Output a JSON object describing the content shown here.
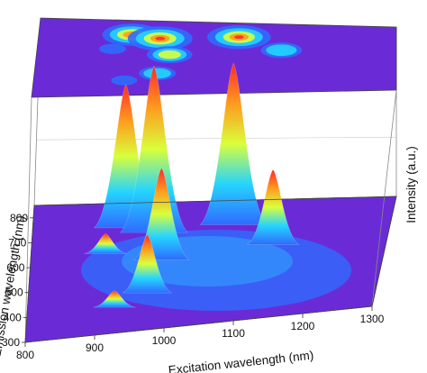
{
  "chart_data": {
    "type": "surface",
    "xlabel": "Excitation wavelength (nm)",
    "ylabel": "Emission wavelength (nm)",
    "zlabel": "Intensity (a.u.)",
    "x_ticks": [
      "800",
      "900",
      "1000",
      "1100",
      "1200",
      "1300"
    ],
    "y_ticks": [
      "300",
      "400",
      "500",
      "600",
      "700",
      "800"
    ],
    "xlim": [
      800,
      1300
    ],
    "ylim": [
      300,
      850
    ],
    "projection": "top-plane-contour",
    "colormap": [
      "#6a2bd6",
      "#2f6bff",
      "#25d4ff",
      "#d9ff3b",
      "#ff9a1e",
      "#ff2a2a"
    ],
    "peaks": [
      {
        "x": 930,
        "y": 745,
        "z": 0.86
      },
      {
        "x": 970,
        "y": 720,
        "z": 1.0
      },
      {
        "x": 985,
        "y": 600,
        "z": 0.55
      },
      {
        "x": 1080,
        "y": 740,
        "z": 0.97
      },
      {
        "x": 1140,
        "y": 640,
        "z": 0.45
      },
      {
        "x": 970,
        "y": 460,
        "z": 0.35
      },
      {
        "x": 905,
        "y": 640,
        "z": 0.12
      },
      {
        "x": 925,
        "y": 410,
        "z": 0.1
      }
    ]
  }
}
